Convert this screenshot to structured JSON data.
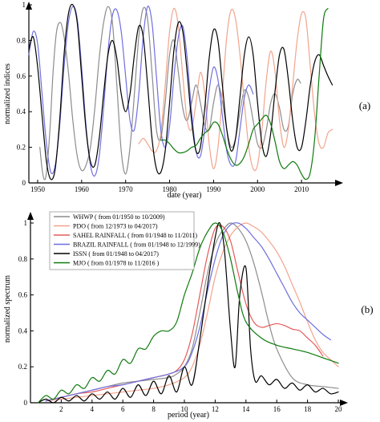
{
  "chart_data": [
    {
      "id": "a",
      "type": "line",
      "panel_label": "(a)",
      "xlabel": "date (year)",
      "ylabel": "normalized indices",
      "xlim": [
        1948,
        2018
      ],
      "ylim": [
        0,
        1
      ],
      "xticks": [
        1950,
        1960,
        1970,
        1980,
        1990,
        2000,
        2010
      ],
      "yticks": [
        0,
        0.2,
        0.4,
        0.6,
        0.8,
        1
      ],
      "series": [
        {
          "color": "#8c8c8c",
          "x": [
            1950.5,
            1951,
            1951.5,
            1952,
            1952.8,
            1953.5,
            1954.3,
            1955.2,
            1956,
            1957,
            1958,
            1959,
            1960,
            1961,
            1962,
            1963,
            1964,
            1965,
            1966,
            1967,
            1968,
            1969,
            1970,
            1971,
            1972,
            1973,
            1974,
            1975,
            1976,
            1977,
            1978,
            1979,
            1980,
            1981,
            1982,
            1983,
            1984,
            1985,
            1986,
            1987,
            1988,
            1989,
            1990,
            1991,
            1992,
            1993,
            1994,
            1995,
            1996,
            1997,
            1998,
            1999,
            2000,
            2001,
            2002,
            2003,
            2004,
            2005,
            2006,
            2007,
            2008,
            2009,
            2009.8
          ],
          "y": [
            0.2,
            0.08,
            0.02,
            0.06,
            0.3,
            0.62,
            0.85,
            0.9,
            0.82,
            0.62,
            0.35,
            0.15,
            0.07,
            0.1,
            0.2,
            0.42,
            0.7,
            0.9,
            0.99,
            0.9,
            0.55,
            0.18,
            0.05,
            0.2,
            0.5,
            0.82,
            0.98,
            0.92,
            0.62,
            0.3,
            0.25,
            0.45,
            0.72,
            0.8,
            0.62,
            0.42,
            0.35,
            0.45,
            0.55,
            0.45,
            0.32,
            0.3,
            0.45,
            0.55,
            0.46,
            0.3,
            0.2,
            0.25,
            0.4,
            0.52,
            0.48,
            0.35,
            0.22,
            0.2,
            0.3,
            0.45,
            0.5,
            0.42,
            0.3,
            0.32,
            0.5,
            0.58,
            0.56
          ]
        },
        {
          "color": "#f2a48c",
          "x": [
            1973,
            1974,
            1975,
            1976,
            1977,
            1978,
            1979,
            1980,
            1981,
            1982,
            1983,
            1984,
            1985,
            1986,
            1987,
            1988,
            1989,
            1990,
            1991,
            1992,
            1993,
            1994,
            1995,
            1996,
            1997,
            1998,
            1999,
            2000,
            2001,
            2002,
            2003,
            2004,
            2005,
            2006,
            2007,
            2008,
            2009,
            2010,
            2011,
            2012,
            2013,
            2014,
            2015,
            2016,
            2017
          ],
          "y": [
            0.22,
            0.25,
            0.22,
            0.18,
            0.18,
            0.28,
            0.55,
            0.85,
            0.98,
            0.88,
            0.6,
            0.35,
            0.3,
            0.45,
            0.62,
            0.5,
            0.22,
            0.08,
            0.2,
            0.5,
            0.82,
            0.97,
            0.92,
            0.72,
            0.45,
            0.2,
            0.08,
            0.1,
            0.3,
            0.58,
            0.74,
            0.62,
            0.35,
            0.2,
            0.3,
            0.55,
            0.8,
            0.95,
            0.92,
            0.65,
            0.38,
            0.22,
            0.2,
            0.28,
            0.3
          ]
        },
        {
          "color": "#6f6fe0",
          "x": [
            1948,
            1949,
            1950,
            1951,
            1952,
            1953,
            1954,
            1955,
            1956,
            1957,
            1958,
            1959,
            1960,
            1961,
            1962,
            1963,
            1964,
            1965,
            1966,
            1967,
            1968,
            1969,
            1970,
            1971,
            1972,
            1973,
            1974,
            1975,
            1976,
            1977,
            1978,
            1979,
            1980,
            1981,
            1982,
            1983,
            1984,
            1985,
            1986,
            1987,
            1988,
            1989,
            1990,
            1991,
            1992,
            1993,
            1994,
            1995,
            1996,
            1997,
            1998,
            1999
          ],
          "y": [
            0.72,
            0.85,
            0.78,
            0.5,
            0.22,
            0.06,
            0.1,
            0.32,
            0.65,
            0.9,
            0.99,
            0.92,
            0.65,
            0.32,
            0.1,
            0.04,
            0.15,
            0.42,
            0.74,
            0.94,
            0.97,
            0.85,
            0.6,
            0.35,
            0.3,
            0.5,
            0.82,
            0.99,
            0.9,
            0.6,
            0.3,
            0.2,
            0.32,
            0.6,
            0.82,
            0.88,
            0.7,
            0.4,
            0.18,
            0.15,
            0.3,
            0.52,
            0.65,
            0.58,
            0.38,
            0.18,
            0.1,
            0.12,
            0.3,
            0.48,
            0.55,
            0.5
          ]
        },
        {
          "color": "#000000",
          "x": [
            1948,
            1949,
            1950,
            1951,
            1952,
            1953,
            1954,
            1955,
            1956,
            1957,
            1958,
            1959,
            1960,
            1961,
            1962,
            1963,
            1964,
            1965,
            1966,
            1967,
            1968,
            1969,
            1970,
            1971,
            1972,
            1973,
            1974,
            1975,
            1976,
            1977,
            1978,
            1979,
            1980,
            1981,
            1982,
            1983,
            1984,
            1985,
            1986,
            1987,
            1988,
            1989,
            1990,
            1991,
            1992,
            1993,
            1994,
            1995,
            1996,
            1997,
            1998,
            1999,
            2000,
            2001,
            2002,
            2003,
            2004,
            2005,
            2006,
            2007,
            2008,
            2009,
            2010,
            2011,
            2012,
            2013,
            2014,
            2015,
            2016,
            2017
          ],
          "y": [
            0.75,
            0.82,
            0.65,
            0.38,
            0.12,
            0.02,
            0.08,
            0.35,
            0.72,
            0.95,
            1.0,
            0.9,
            0.6,
            0.3,
            0.12,
            0.1,
            0.25,
            0.5,
            0.72,
            0.8,
            0.7,
            0.5,
            0.4,
            0.5,
            0.72,
            0.88,
            0.82,
            0.55,
            0.25,
            0.08,
            0.06,
            0.18,
            0.45,
            0.75,
            0.9,
            0.85,
            0.62,
            0.35,
            0.18,
            0.2,
            0.42,
            0.7,
            0.86,
            0.8,
            0.55,
            0.3,
            0.18,
            0.25,
            0.48,
            0.72,
            0.82,
            0.72,
            0.45,
            0.22,
            0.15,
            0.28,
            0.52,
            0.72,
            0.75,
            0.58,
            0.35,
            0.2,
            0.2,
            0.35,
            0.55,
            0.68,
            0.72,
            0.66,
            0.6,
            0.55
          ]
        },
        {
          "color": "#0e7a0e",
          "x": [
            1978,
            1979,
            1980,
            1981,
            1982,
            1983,
            1984,
            1985,
            1986,
            1987,
            1988,
            1989,
            1990,
            1991,
            1992,
            1993,
            1994,
            1995,
            1996,
            1997,
            1998,
            1999,
            2000,
            2001,
            2002,
            2003,
            2004,
            2005,
            2006,
            2007,
            2008,
            2009,
            2010,
            2011,
            2012,
            2013,
            2014,
            2015,
            2016
          ],
          "y": [
            0.24,
            0.24,
            0.22,
            0.19,
            0.17,
            0.17,
            0.18,
            0.2,
            0.21,
            0.25,
            0.28,
            0.3,
            0.34,
            0.33,
            0.27,
            0.19,
            0.13,
            0.1,
            0.11,
            0.15,
            0.22,
            0.3,
            0.33,
            0.36,
            0.38,
            0.33,
            0.23,
            0.12,
            0.08,
            0.1,
            0.12,
            0.1,
            0.05,
            0.02,
            0.06,
            0.25,
            0.6,
            0.92,
            0.98
          ]
        }
      ]
    },
    {
      "id": "b",
      "type": "line",
      "panel_label": "(b)",
      "xlabel": "period (year)",
      "ylabel": "normalized spectrum",
      "xlim": [
        0,
        20
      ],
      "ylim": [
        0,
        1
      ],
      "xticks": [
        2,
        4,
        6,
        8,
        10,
        12,
        14,
        16,
        18,
        20
      ],
      "yticks": [
        0,
        0.2,
        0.4,
        0.6,
        0.8,
        1
      ],
      "series": [
        {
          "name": "WHWP ( from 01/1950 to 10/2009)",
          "color": "#8c8c8c",
          "x": [
            1,
            2,
            3,
            4,
            5,
            6,
            7,
            8,
            9,
            9.5,
            10,
            10.5,
            11,
            11.5,
            12,
            12.5,
            13,
            13.5,
            14,
            14.5,
            15,
            15.5,
            16,
            17,
            18,
            19,
            20
          ],
          "y": [
            0.01,
            0.03,
            0.05,
            0.07,
            0.09,
            0.11,
            0.12,
            0.13,
            0.14,
            0.16,
            0.2,
            0.3,
            0.5,
            0.72,
            0.88,
            0.96,
            1.0,
            0.97,
            0.9,
            0.78,
            0.62,
            0.44,
            0.3,
            0.14,
            0.1,
            0.09,
            0.08
          ]
        },
        {
          "name": "PDO ( from 12/1973 to 04/2017)",
          "color": "#f2a48c",
          "x": [
            1,
            2,
            3,
            4,
            5,
            6,
            7,
            8,
            9,
            10,
            10.5,
            11,
            11.5,
            12,
            12.5,
            13,
            13.5,
            14,
            14.5,
            15,
            15.5,
            16,
            16.5,
            17,
            17.5,
            18,
            18.5,
            19,
            19.5,
            20
          ],
          "y": [
            0.01,
            0.02,
            0.03,
            0.04,
            0.05,
            0.06,
            0.07,
            0.08,
            0.1,
            0.14,
            0.2,
            0.32,
            0.5,
            0.7,
            0.84,
            0.93,
            0.98,
            1.0,
            0.98,
            0.95,
            0.9,
            0.84,
            0.76,
            0.66,
            0.56,
            0.45,
            0.35,
            0.28,
            0.24,
            0.2
          ]
        },
        {
          "name": "SAHEL RAINFALL  ( from 01/1948 to 11/2011)",
          "color": "#e45a5a",
          "x": [
            1,
            2,
            3,
            4,
            5,
            6,
            7,
            8,
            9,
            9.5,
            10,
            10.5,
            11,
            11.5,
            12,
            12.5,
            13,
            13.5,
            14,
            14.5,
            15,
            15.5,
            16,
            16.5,
            17,
            17.5,
            18,
            18.5,
            19
          ],
          "y": [
            0.01,
            0.03,
            0.05,
            0.06,
            0.08,
            0.1,
            0.12,
            0.14,
            0.16,
            0.18,
            0.24,
            0.38,
            0.6,
            0.82,
            0.97,
            0.98,
            0.9,
            0.72,
            0.55,
            0.45,
            0.42,
            0.43,
            0.44,
            0.43,
            0.41,
            0.4,
            0.36,
            0.32,
            0.26
          ]
        },
        {
          "name": "BRAZIL RAINFALL ( from 01/1948 to 12/1999)",
          "color": "#6f6fe0",
          "x": [
            1,
            2,
            3,
            4,
            5,
            6,
            7,
            8,
            9,
            10,
            10.5,
            11,
            11.5,
            12,
            12.5,
            13,
            13.5,
            14,
            14.5,
            15,
            15.5,
            16,
            16.5,
            17,
            17.5,
            18,
            18.5,
            19,
            19.5
          ],
          "y": [
            0.01,
            0.03,
            0.05,
            0.07,
            0.09,
            0.1,
            0.12,
            0.14,
            0.16,
            0.2,
            0.28,
            0.42,
            0.62,
            0.8,
            0.93,
            0.99,
            1.0,
            0.97,
            0.92,
            0.87,
            0.8,
            0.72,
            0.64,
            0.56,
            0.5,
            0.46,
            0.42,
            0.38,
            0.35
          ]
        },
        {
          "name": "ISSN ( from 01/1948 to 04/2017)",
          "color": "#000000",
          "x": [
            0.5,
            1,
            1.5,
            2,
            2.5,
            3,
            3.5,
            4,
            4.5,
            5,
            5.5,
            6,
            6.5,
            7,
            7.5,
            8,
            8.5,
            9,
            9.5,
            10,
            10.5,
            11,
            11.5,
            12,
            12.3,
            12.6,
            13,
            13.3,
            13.6,
            14,
            14.3,
            14.6,
            15,
            15.5,
            16,
            16.5,
            17,
            17.5,
            18,
            18.5,
            19,
            19.5,
            20
          ],
          "y": [
            0.0,
            0.02,
            0.0,
            0.03,
            0.01,
            0.04,
            0.01,
            0.05,
            0.02,
            0.06,
            0.02,
            0.08,
            0.03,
            0.1,
            0.04,
            0.12,
            0.05,
            0.15,
            0.06,
            0.2,
            0.1,
            0.35,
            0.65,
            0.92,
            1.0,
            0.85,
            0.4,
            0.2,
            0.6,
            0.75,
            0.3,
            0.12,
            0.15,
            0.1,
            0.13,
            0.08,
            0.11,
            0.07,
            0.1,
            0.06,
            0.08,
            0.05,
            0.06
          ]
        },
        {
          "name": "MJO ( from 01/1978 to 11/2016 )",
          "color": "#0e7a0e",
          "x": [
            0.5,
            1,
            1.5,
            2,
            2.5,
            3,
            3.5,
            4,
            4.5,
            5,
            5.5,
            6,
            6.5,
            7,
            7.5,
            8,
            8.5,
            9,
            9.5,
            10,
            10.5,
            11,
            11.5,
            12,
            12.5,
            13,
            13.5,
            14,
            15,
            16,
            17,
            18,
            19,
            20
          ],
          "y": [
            0.0,
            0.04,
            0.02,
            0.07,
            0.05,
            0.1,
            0.08,
            0.14,
            0.12,
            0.18,
            0.16,
            0.24,
            0.22,
            0.3,
            0.3,
            0.37,
            0.4,
            0.4,
            0.45,
            0.6,
            0.72,
            0.86,
            0.95,
            1.0,
            0.95,
            0.8,
            0.6,
            0.45,
            0.36,
            0.32,
            0.3,
            0.28,
            0.25,
            0.22
          ]
        }
      ]
    }
  ]
}
